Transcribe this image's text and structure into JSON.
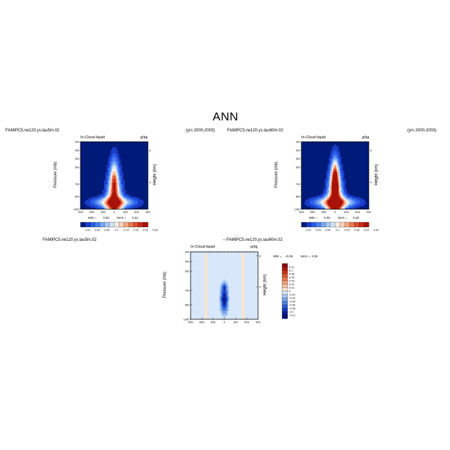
{
  "figure": {
    "title": "ANN",
    "panel1": {
      "case": "FAMIPC5.ne120.ys.tau5m.02",
      "years": "(yrs 2000-2003)",
      "variable": "In-Cloud liquid",
      "units": "g/kg",
      "min_label": "MIN =",
      "min_value": "0.00",
      "max_label": "MAX =",
      "max_value": "0.22"
    },
    "panel2": {
      "case": "FAMIPC5.ne120.ys.tau60m.02",
      "years": "(yrs 2000-2003)",
      "variable": "In-Cloud liquid",
      "units": "g/kg",
      "min_label": "MIN =",
      "min_value": "0.00",
      "max_label": "MAX =",
      "max_value": "0.28"
    },
    "diff": {
      "left_case": "FAMIPC5.ne120.ys.tau5m.02",
      "right_case": "– FAMIPC5.ne120.ys.tau60m.02",
      "variable": "In-Cloud liquid",
      "units": "g/kg",
      "min_label": "MIN =",
      "min_value": "–0.09",
      "max_label": "MAX =",
      "max_value": "0.00"
    },
    "labels": {
      "ylabel": "Pressure (mb)",
      "y2label": "Height (km)"
    }
  },
  "chart_data": [
    {
      "type": "heatmap",
      "name": "panel1",
      "xlabel": "",
      "ylabel": "Pressure (mb)",
      "y2label": "Height (km)",
      "xticks": [
        "90N",
        "60N",
        "30N",
        "0",
        "30S",
        "60S",
        "90S"
      ],
      "yticks": [
        "200",
        "300",
        "400",
        "500",
        "700",
        "850",
        "1000"
      ],
      "y2ticks": [
        "8",
        "4"
      ],
      "ylim": [
        200,
        1000
      ],
      "colorbar_labels": [
        "0.01",
        "0.03",
        "0.05",
        "0.1",
        "0.14",
        "0.18",
        "0.22",
        "0.26"
      ],
      "colors": [
        "#001a7a",
        "#1a3cc8",
        "#2a5ee8",
        "#4a80f0",
        "#78a8f5",
        "#a8caf8",
        "#d2e4fb",
        "#fdf0e6",
        "#fbd4b8",
        "#f5aa84",
        "#ec7a52",
        "#dd4e30",
        "#c72a18",
        "#a81208"
      ],
      "max_value": 0.22,
      "min_value": 0.0
    },
    {
      "type": "heatmap",
      "name": "panel2",
      "xlabel": "",
      "ylabel": "Pressure (mb)",
      "y2label": "Height (km)",
      "xticks": [
        "90N",
        "60N",
        "30N",
        "0",
        "30S",
        "60S",
        "90S"
      ],
      "yticks": [
        "200",
        "300",
        "400",
        "500",
        "700",
        "850",
        "1000"
      ],
      "y2ticks": [
        "8",
        "4"
      ],
      "ylim": [
        200,
        1000
      ],
      "colorbar_labels": [
        "0.01",
        "0.03",
        "0.05",
        "0.1",
        "0.14",
        "0.18",
        "0.22",
        "0.26"
      ],
      "colors": [
        "#001a7a",
        "#1a3cc8",
        "#2a5ee8",
        "#4a80f0",
        "#78a8f5",
        "#a8caf8",
        "#d2e4fb",
        "#fdf0e6",
        "#fbd4b8",
        "#f5aa84",
        "#ec7a52",
        "#dd4e30",
        "#c72a18",
        "#a81208"
      ],
      "max_value": 0.28,
      "min_value": 0.0
    },
    {
      "type": "heatmap",
      "name": "difference",
      "xlabel": "",
      "ylabel": "Pressure (mb)",
      "y2label": "Height (km)",
      "xticks": [
        "90N",
        "60N",
        "30N",
        "0",
        "30S",
        "60S",
        "90S"
      ],
      "yticks": [
        "300",
        "400",
        "500",
        "700",
        "850",
        "1000"
      ],
      "y2ticks": [
        "8",
        "4"
      ],
      "ylim": [
        300,
        1000
      ],
      "colorbar_labels": [
        "0.12",
        "0.1",
        "0.08",
        "0.06",
        "0.04",
        "0.02",
        "0.01",
        "0",
        "-0.01",
        "-0.02",
        "-0.04",
        "-0.06",
        "-0.08",
        "-0.1",
        "-0.12"
      ],
      "colors": [
        "#8b0a0a",
        "#b01a10",
        "#cc3418",
        "#dd5a30",
        "#ea7d50",
        "#f19f78",
        "#f6c3a4",
        "#fbe4d0",
        "#d8e8fa",
        "#a9c8f3",
        "#7aa6ec",
        "#4f83e2",
        "#2d5ed4",
        "#1538b8",
        "#0a1e96",
        "#060f70"
      ],
      "max_value": 0.0,
      "min_value": -0.09
    }
  ]
}
